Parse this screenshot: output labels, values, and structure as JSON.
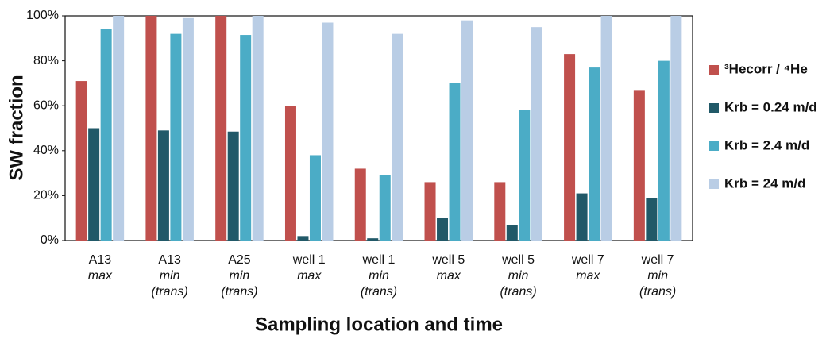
{
  "chart_data": {
    "type": "bar",
    "x_label": "Sampling location and time",
    "y_label": "SW fraction",
    "categories": [
      [
        "A13",
        "max"
      ],
      [
        "A13",
        "min",
        "(trans)"
      ],
      [
        "A25",
        "min",
        "(trans)"
      ],
      [
        "well 1",
        "max"
      ],
      [
        "well 1",
        "min",
        "(trans)"
      ],
      [
        "well 5",
        "max"
      ],
      [
        "well 5",
        "min",
        "(trans)"
      ],
      [
        "well 7",
        "max"
      ],
      [
        "well 7",
        "min",
        "(trans)"
      ]
    ],
    "series": [
      {
        "name": "³Hecorr / ⁴He",
        "color": "#c0504d",
        "values": [
          71,
          100,
          100,
          60,
          32,
          26,
          26,
          83,
          67
        ]
      },
      {
        "name": "Krb = 0.24 m/d",
        "color": "#215968",
        "values": [
          50,
          49,
          48.5,
          2,
          1,
          10,
          7,
          21,
          19
        ]
      },
      {
        "name": "Krb = 2.4 m/d",
        "color": "#4bacc6",
        "values": [
          94,
          92,
          91.5,
          38,
          29,
          70,
          58,
          77,
          80
        ]
      },
      {
        "name": "Krb = 24 m/d",
        "color": "#b9cde5",
        "values": [
          100,
          99,
          100,
          97,
          92,
          98,
          95,
          100,
          100
        ]
      }
    ],
    "ylim": [
      0,
      100
    ],
    "yticks": [
      {
        "value": 0,
        "label": "0%"
      },
      {
        "value": 20,
        "label": "20%"
      },
      {
        "value": 40,
        "label": "40%"
      },
      {
        "value": 60,
        "label": "60%"
      },
      {
        "value": 80,
        "label": "80%"
      },
      {
        "value": 100,
        "label": "100%"
      }
    ],
    "grid": false,
    "legend": "right"
  }
}
